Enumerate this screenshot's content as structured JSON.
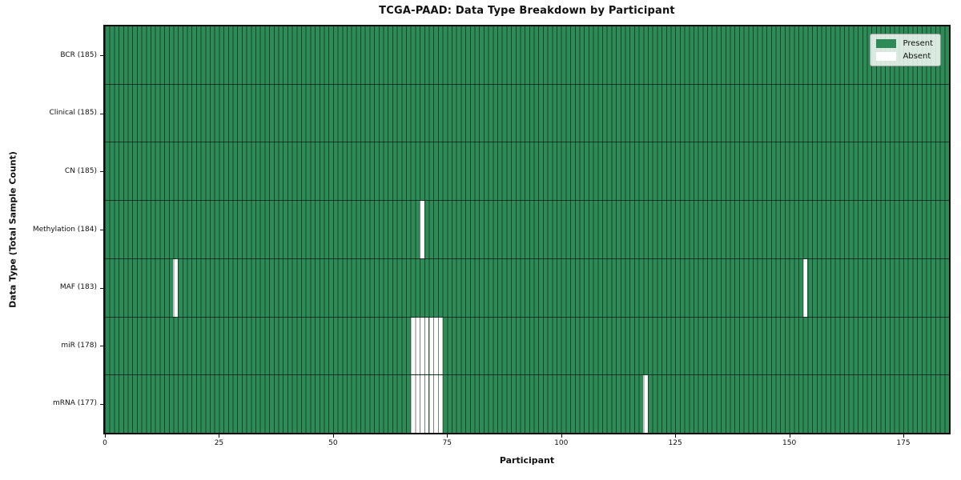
{
  "chart_data": {
    "type": "heatmap",
    "title": "TCGA-PAAD: Data Type Breakdown by Participant",
    "xlabel": "Participant",
    "ylabel": "Data Type (Total Sample Count)",
    "x_range": [
      0,
      185
    ],
    "participant_count": 185,
    "xticks": [
      0,
      25,
      50,
      75,
      100,
      125,
      150,
      175
    ],
    "grid": "cell-borders",
    "legend_position": "upper-right",
    "rows": [
      {
        "data_type": "BCR",
        "label": "BCR (185)",
        "total": 185,
        "absent_participants": []
      },
      {
        "data_type": "Clinical",
        "label": "Clinical (185)",
        "total": 185,
        "absent_participants": []
      },
      {
        "data_type": "CN",
        "label": "CN (185)",
        "total": 185,
        "absent_participants": []
      },
      {
        "data_type": "Methylation",
        "label": "Methylation (184)",
        "total": 184,
        "absent_participants": [
          69
        ]
      },
      {
        "data_type": "MAF",
        "label": "MAF (183)",
        "total": 183,
        "absent_participants": [
          15,
          153
        ]
      },
      {
        "data_type": "miR",
        "label": "miR (178)",
        "total": 178,
        "absent_participants": [
          67,
          68,
          69,
          70,
          71,
          72,
          73
        ]
      },
      {
        "data_type": "mRNA",
        "label": "mRNA (177)",
        "total": 177,
        "absent_participants": [
          67,
          68,
          69,
          70,
          71,
          72,
          73,
          118
        ]
      }
    ],
    "legend": [
      {
        "label": "Present",
        "color": "#2e8b57"
      },
      {
        "label": "Absent",
        "color": "#ffffff"
      }
    ],
    "colors": {
      "present": "#2e8b57",
      "absent": "#ffffff",
      "cell_border": "rgba(0,0,0,0.5)",
      "row_separator": "rgba(0,0,0,0.6)",
      "spine": "#0d0d0d"
    }
  }
}
